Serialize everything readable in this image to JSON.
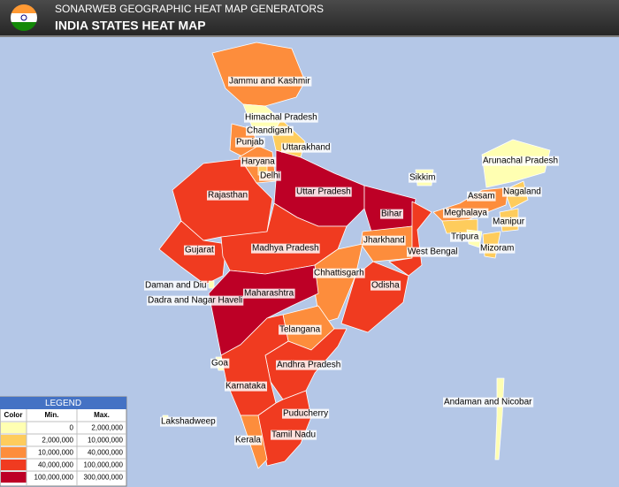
{
  "header": {
    "subtitle": "SONARWEB GEOGRAPHIC HEAT MAP GENERATORS",
    "title": "INDIA STATES HEAT MAP"
  },
  "states": [
    {
      "name": "Jammu and Kashmir",
      "color": "#fd8d3c"
    },
    {
      "name": "Himachal Pradesh",
      "color": "#ffffb2"
    },
    {
      "name": "Chandigarh",
      "color": "#ffffb2"
    },
    {
      "name": "Punjab",
      "color": "#fd8d3c"
    },
    {
      "name": "Uttarakhand",
      "color": "#fecc5c"
    },
    {
      "name": "Haryana",
      "color": "#fd8d3c"
    },
    {
      "name": "Delhi",
      "color": "#fecc5c"
    },
    {
      "name": "Rajasthan",
      "color": "#f03b20"
    },
    {
      "name": "Uttar Pradesh",
      "color": "#bd0026"
    },
    {
      "name": "Bihar",
      "color": "#bd0026"
    },
    {
      "name": "Sikkim",
      "color": "#ffffb2"
    },
    {
      "name": "Arunachal Pradesh",
      "color": "#ffffb2"
    },
    {
      "name": "Nagaland",
      "color": "#fecc5c"
    },
    {
      "name": "Assam",
      "color": "#fd8d3c"
    },
    {
      "name": "Meghalaya",
      "color": "#fecc5c"
    },
    {
      "name": "Manipur",
      "color": "#fecc5c"
    },
    {
      "name": "Tripura",
      "color": "#fecc5c"
    },
    {
      "name": "Mizoram",
      "color": "#ffffb2"
    },
    {
      "name": "Jharkhand",
      "color": "#fd8d3c"
    },
    {
      "name": "West Bengal",
      "color": "#f03b20"
    },
    {
      "name": "Gujarat",
      "color": "#f03b20"
    },
    {
      "name": "Madhya Pradesh",
      "color": "#f03b20"
    },
    {
      "name": "Daman and Diu",
      "color": "#ffffb2"
    },
    {
      "name": "Chhattisgarh",
      "color": "#fd8d3c"
    },
    {
      "name": "Odisha",
      "color": "#f03b20"
    },
    {
      "name": "Dadra and Nagar Haveli",
      "color": "#ffffb2"
    },
    {
      "name": "Maharashtra",
      "color": "#bd0026"
    },
    {
      "name": "Telangana",
      "color": "#fd8d3c"
    },
    {
      "name": "Goa",
      "color": "#ffffb2"
    },
    {
      "name": "Andhra Pradesh",
      "color": "#f03b20"
    },
    {
      "name": "Karnataka",
      "color": "#f03b20"
    },
    {
      "name": "Andaman and Nicobar",
      "color": "#ffffb2"
    },
    {
      "name": "Puducherry",
      "color": "#fecc5c"
    },
    {
      "name": "Lakshadweep",
      "color": "#ffffb2"
    },
    {
      "name": "Tamil Nadu",
      "color": "#f03b20"
    },
    {
      "name": "Kerala",
      "color": "#fd8d3c"
    }
  ],
  "legend": {
    "title": "LEGEND",
    "columns": [
      "Color",
      "Min.",
      "Max."
    ],
    "rows": [
      {
        "color": "#ffffb2",
        "min": "0",
        "max": "2,000,000"
      },
      {
        "color": "#fecc5c",
        "min": "2,000,000",
        "max": "10,000,000"
      },
      {
        "color": "#fd8d3c",
        "min": "10,000,000",
        "max": "40,000,000"
      },
      {
        "color": "#f03b20",
        "min": "40,000,000",
        "max": "100,000,000"
      },
      {
        "color": "#bd0026",
        "min": "100,000,000",
        "max": "300,000,000"
      }
    ]
  }
}
